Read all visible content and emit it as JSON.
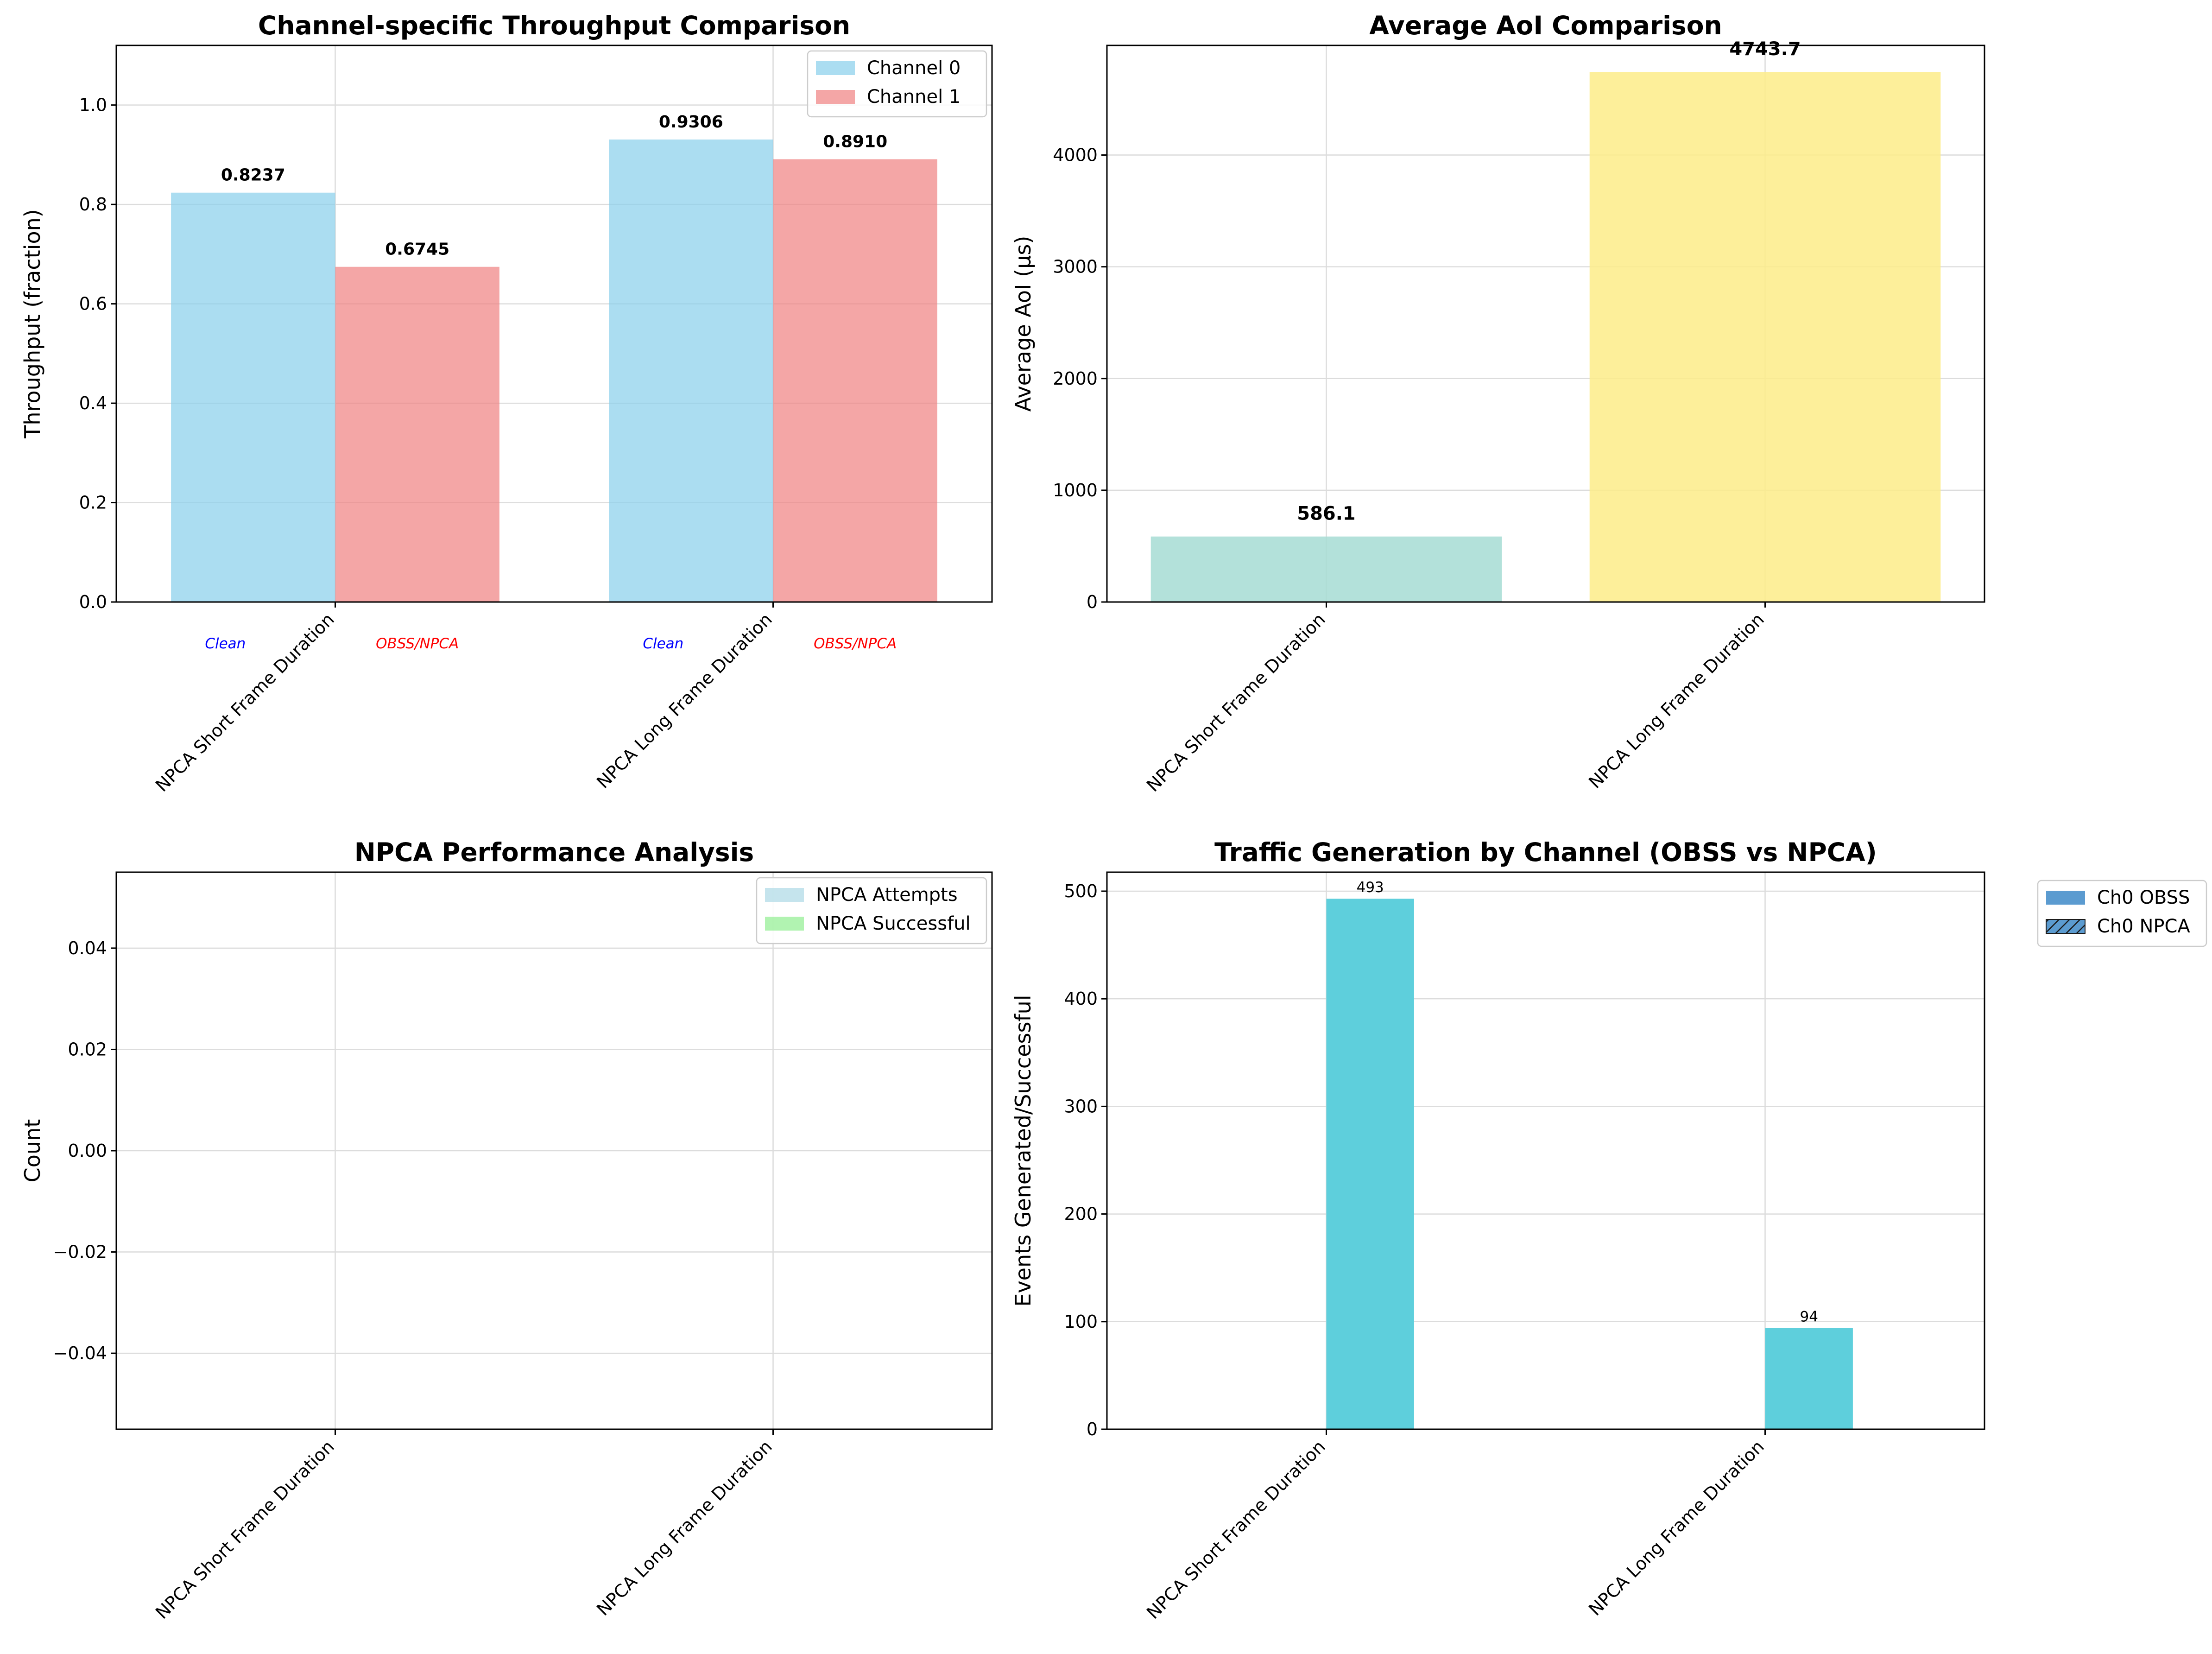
{
  "chart_data": [
    {
      "type": "bar",
      "title": "Channel-specific Throughput Comparison",
      "xlabel": "",
      "ylabel": "Throughput (fraction)",
      "ylim": [
        0,
        1.12
      ],
      "yticks": [
        0.0,
        0.2,
        0.4,
        0.6,
        0.8,
        1.0
      ],
      "ytick_labels": [
        "0.0",
        "0.2",
        "0.4",
        "0.6",
        "0.8",
        "1.0"
      ],
      "categories": [
        "NPCA Short Frame Duration",
        "NPCA Long Frame Duration"
      ],
      "series": [
        {
          "name": "Channel 0",
          "values": [
            0.8237,
            0.9306
          ],
          "labels": [
            "0.8237",
            "0.9306"
          ],
          "color": "#87ceeb"
        },
        {
          "name": "Channel 1",
          "values": [
            0.6745,
            0.891
          ],
          "labels": [
            "0.6745",
            "0.8910"
          ],
          "color": "#f08080"
        }
      ],
      "bar_annotations": [
        {
          "text": "Clean",
          "color": "#0000ff"
        },
        {
          "text": "OBSS/NPCA",
          "color": "#ff0000"
        }
      ],
      "grid": true,
      "legend": "top-right"
    },
    {
      "type": "bar",
      "title": "Average AoI Comparison",
      "xlabel": "",
      "ylabel": "Average AoI (μs)",
      "ylim": [
        0,
        4981
      ],
      "yticks": [
        0,
        1000,
        2000,
        3000,
        4000
      ],
      "ytick_labels": [
        "0",
        "1000",
        "2000",
        "3000",
        "4000"
      ],
      "categories": [
        "NPCA Short Frame Duration",
        "NPCA Long Frame Duration"
      ],
      "values": [
        586.1,
        4743.7
      ],
      "labels": [
        "586.1",
        "4743.7"
      ],
      "colors": [
        "#a6dcd3",
        "#fdec88"
      ],
      "grid": true
    },
    {
      "type": "bar",
      "title": "NPCA Performance Analysis",
      "xlabel": "",
      "ylabel": "Count",
      "ylim": [
        -0.055,
        0.055
      ],
      "yticks": [
        -0.04,
        -0.02,
        0.0,
        0.02,
        0.04
      ],
      "ytick_labels": [
        "−0.04",
        "−0.02",
        "0.00",
        "0.02",
        "0.04"
      ],
      "categories": [
        "NPCA Short Frame Duration",
        "NPCA Long Frame Duration"
      ],
      "series": [
        {
          "name": "NPCA Attempts",
          "values": [
            0,
            0
          ],
          "color": "#add8e6"
        },
        {
          "name": "NPCA Successful",
          "values": [
            0,
            0
          ],
          "color": "#90ee90"
        }
      ],
      "grid": true,
      "legend": "top-right"
    },
    {
      "type": "bar",
      "title": "Traffic Generation by Channel (OBSS vs NPCA)",
      "xlabel": "",
      "ylabel": "Events Generated/Successful",
      "ylim": [
        0,
        517.65
      ],
      "yticks": [
        0,
        100,
        200,
        300,
        400,
        500
      ],
      "ytick_labels": [
        "0",
        "100",
        "200",
        "300",
        "400",
        "500"
      ],
      "categories": [
        "NPCA Short Frame Duration",
        "NPCA Long Frame Duration"
      ],
      "series": [
        {
          "name": "",
          "values": [
            493,
            94
          ],
          "labels": [
            "493",
            "94"
          ],
          "color": "#5ecfdc"
        }
      ],
      "legend_entries": [
        {
          "name": "Ch0 OBSS",
          "color": "#1f77b4",
          "hatch": false
        },
        {
          "name": "Ch0 NPCA",
          "color": "#1f77b4",
          "hatch": true
        }
      ],
      "grid": true,
      "legend": "outside-right"
    }
  ]
}
